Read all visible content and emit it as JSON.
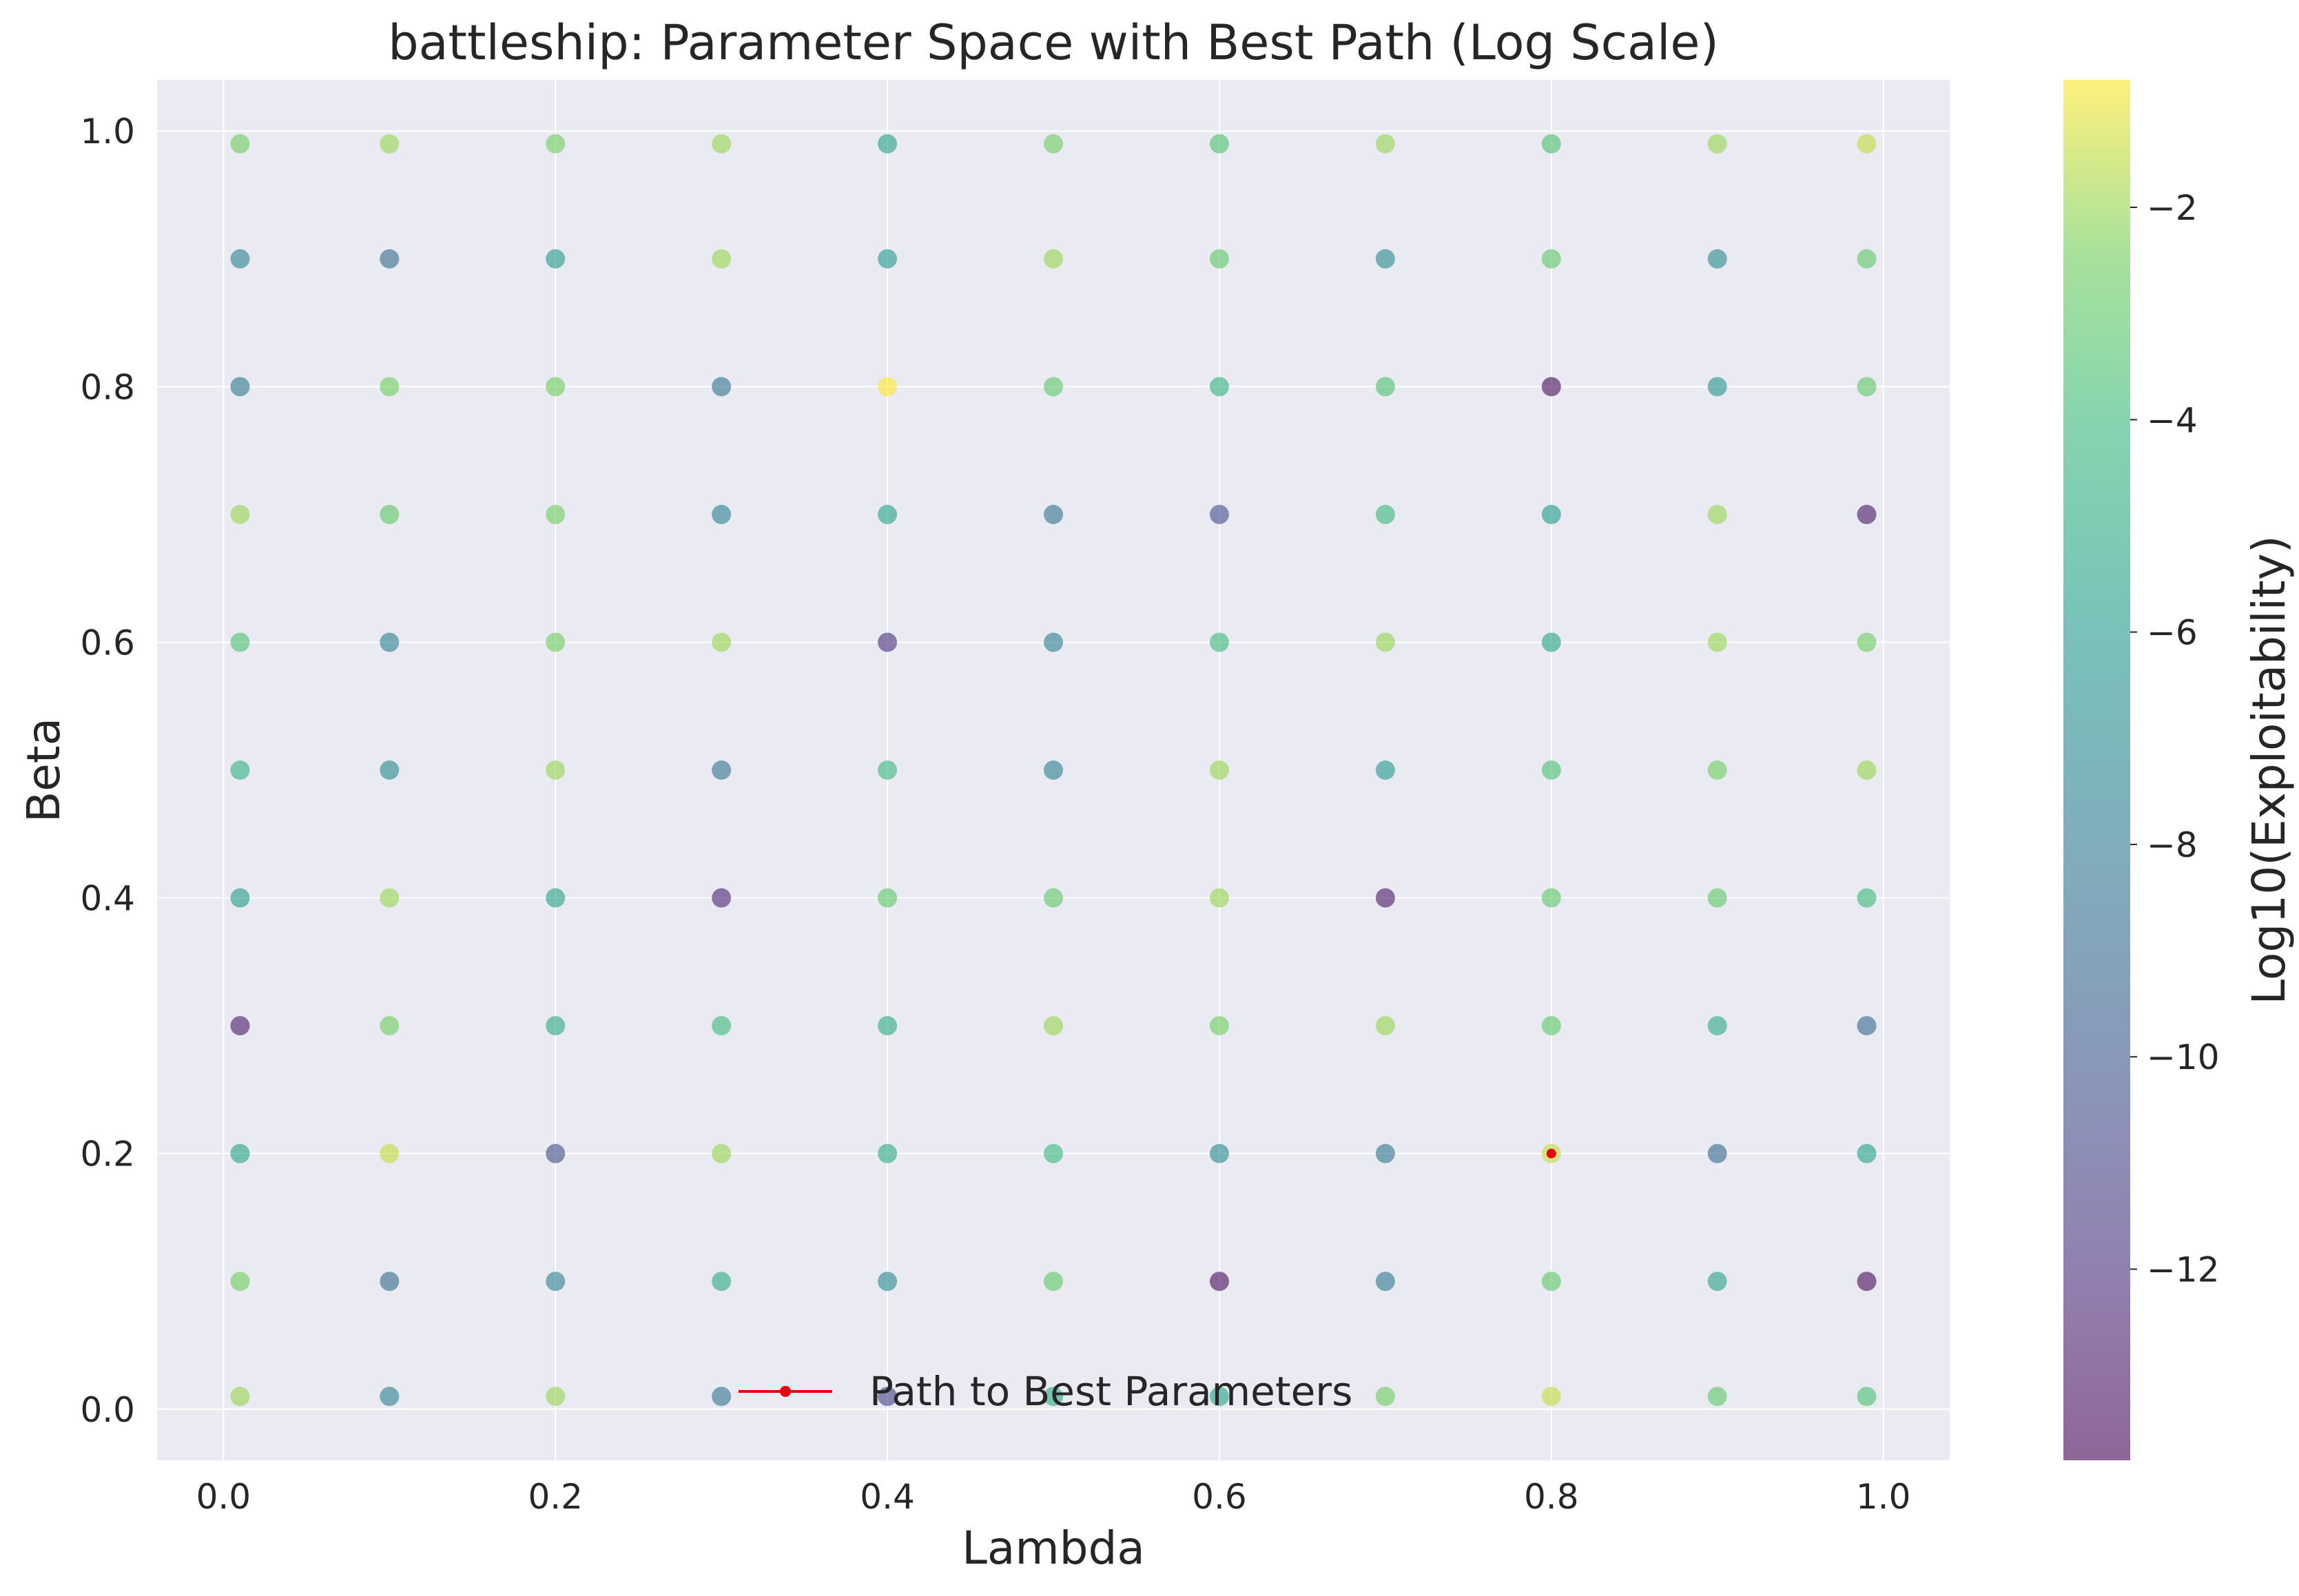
{
  "chart_data": {
    "type": "scatter",
    "title": "battleship: Parameter Space with Best Path (Log Scale)",
    "xlabel": "Lambda",
    "ylabel": "Beta",
    "xlim": [
      -0.04,
      1.04
    ],
    "ylim": [
      -0.04,
      1.04
    ],
    "x_ticks": [
      "0.0",
      "0.2",
      "0.4",
      "0.6",
      "0.8",
      "1.0"
    ],
    "y_ticks": [
      "0.0",
      "0.2",
      "0.4",
      "0.6",
      "0.8",
      "1.0"
    ],
    "grid": true,
    "colormap": "viridis",
    "colorbar": {
      "label": "Log10(Exploitability)",
      "range": [
        -13.8,
        -0.8
      ],
      "ticks": [
        "−2",
        "−4",
        "−6",
        "−8",
        "−10",
        "−12"
      ],
      "tick_values": [
        -2,
        -4,
        -6,
        -8,
        -10,
        -12
      ]
    },
    "x_grid": [
      0.01,
      0.1,
      0.2,
      0.3,
      0.4,
      0.5,
      0.6,
      0.7,
      0.8,
      0.9,
      0.99
    ],
    "y_grid": [
      0.99,
      0.9,
      0.8,
      0.7,
      0.6,
      0.5,
      0.4,
      0.3,
      0.2,
      0.1,
      0.01
    ],
    "z_rows": [
      [
        -2.5,
        -2.0,
        -2.5,
        -2.0,
        -5.5,
        -2.5,
        -3.5,
        -2.0,
        -3.5,
        -2.0,
        -1.5
      ],
      [
        -7.5,
        -9.0,
        -6.0,
        -2.0,
        -6.0,
        -2.0,
        -3.0,
        -7.0,
        -3.0,
        -7.0,
        -3.0
      ],
      [
        -8.0,
        -2.5,
        -2.5,
        -8.5,
        -0.8,
        -3.0,
        -4.5,
        -3.5,
        -13.5,
        -6.5,
        -3.0
      ],
      [
        -2.0,
        -3.0,
        -2.5,
        -7.5,
        -5.5,
        -8.5,
        -10.5,
        -4.0,
        -6.0,
        -2.0,
        -13.0
      ],
      [
        -3.5,
        -7.5,
        -2.5,
        -2.0,
        -12.0,
        -7.5,
        -4.0,
        -2.0,
        -5.5,
        -2.0,
        -2.5
      ],
      [
        -4.5,
        -7.0,
        -2.0,
        -8.5,
        -4.0,
        -7.5,
        -2.0,
        -6.0,
        -3.5,
        -2.5,
        -2.0
      ],
      [
        -6.0,
        -2.0,
        -5.5,
        -12.5,
        -3.0,
        -3.0,
        -2.0,
        -13.0,
        -3.0,
        -3.0,
        -4.0
      ],
      [
        -13.0,
        -2.5,
        -5.0,
        -4.0,
        -5.0,
        -2.0,
        -2.5,
        -2.0,
        -3.0,
        -5.0,
        -9.0
      ],
      [
        -5.5,
        -1.5,
        -10.5,
        -2.0,
        -5.0,
        -4.0,
        -7.0,
        -8.0,
        -1.5,
        -9.0,
        -5.5
      ],
      [
        -2.5,
        -9.0,
        -7.5,
        -5.0,
        -7.0,
        -3.0,
        -13.5,
        -8.0,
        -3.0,
        -5.5,
        -13.5
      ],
      [
        -2.0,
        -7.5,
        -2.0,
        -8.5,
        -11.0,
        -5.0,
        -5.5,
        -2.5,
        -1.5,
        -3.0,
        -3.5
      ]
    ],
    "series": [
      {
        "name": "Path to Best Parameters",
        "color": "#e8000b",
        "points": [
          [
            0.8,
            0.2
          ]
        ]
      }
    ],
    "legend_position": "lower-center"
  },
  "colors": {
    "plot_background": "#eaeaf2",
    "grid": "#ffffff",
    "text": "#262626",
    "path": "#e8000b"
  }
}
